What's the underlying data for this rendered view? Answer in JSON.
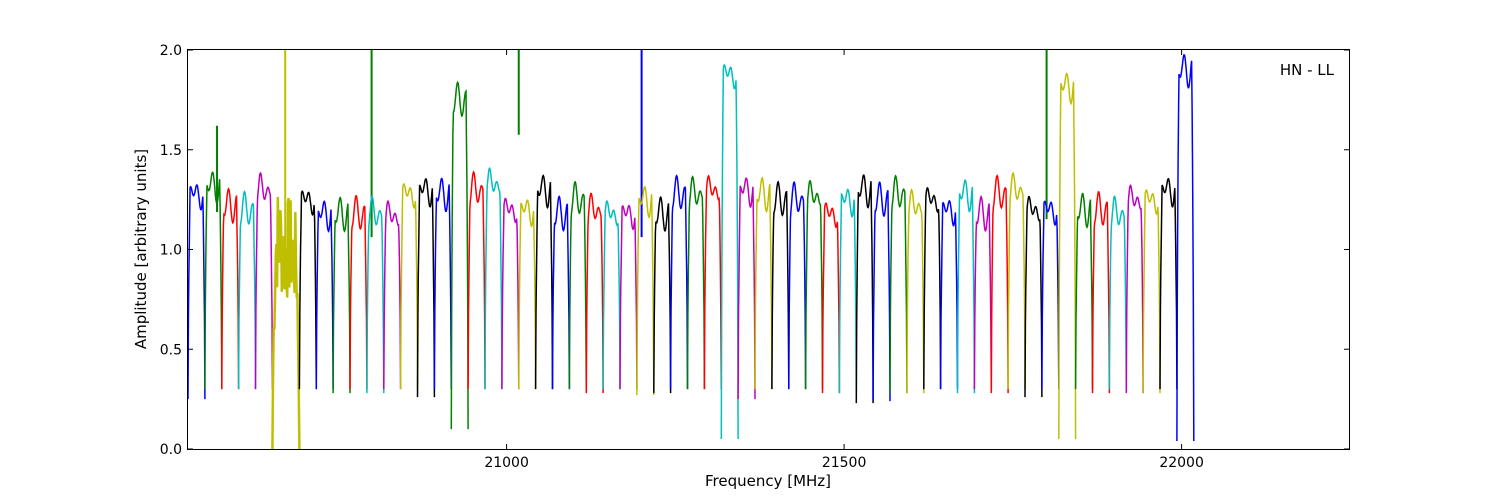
{
  "chart_data": {
    "type": "line",
    "annotation": "HN - LL",
    "xlabel": "Frequency [MHz]",
    "ylabel": "Amplitude [arbitrary units]",
    "xlim": [
      20528,
      22248
    ],
    "ylim": [
      0.0,
      2.0
    ],
    "x_ticks": [
      21000,
      21500,
      22000
    ],
    "x_tick_labels": [
      "21000",
      "21500",
      "22000"
    ],
    "y_ticks": [
      0.0,
      0.5,
      1.0,
      1.5,
      2.0
    ],
    "y_tick_labels": [
      "0.0",
      "0.5",
      "1.0",
      "1.5",
      "2.0"
    ],
    "grid": false,
    "legend": "none",
    "colors": [
      "#0000ff",
      "#008000",
      "#ff0000",
      "#00bfbf",
      "#bf00bf",
      "#bfbf00",
      "#000000"
    ],
    "background_color": "#c0c0c0",
    "channel_width_mhz": 25,
    "series": [
      {
        "color": "#0000ff",
        "x": [
          20528,
          20553
        ],
        "peak": 1.28,
        "floor": 0.25
      },
      {
        "color": "#008000",
        "x": [
          20553,
          20578
        ],
        "peak": 1.32,
        "floor": 0.3,
        "spike": {
          "x": 20571,
          "y": 1.62
        }
      },
      {
        "color": "#ff0000",
        "x": [
          20578,
          20603
        ],
        "peak": 1.22,
        "floor": 0.3
      },
      {
        "color": "#00bfbf",
        "x": [
          20603,
          20628
        ],
        "peak": 1.2,
        "floor": 0.3
      },
      {
        "color": "#bf00bf",
        "x": [
          20628,
          20653
        ],
        "peak": 1.3,
        "floor": 0.3
      },
      {
        "color": "#bfbf00",
        "x": [
          20653,
          20693
        ],
        "peak": 1.05,
        "floor": 0.0,
        "noisy": true,
        "spike": {
          "x": 20672,
          "y": 2.0
        }
      },
      {
        "color": "#000000",
        "x": [
          20693,
          20718
        ],
        "peak": 1.25,
        "floor": 0.3
      },
      {
        "color": "#0000ff",
        "x": [
          20718,
          20743
        ],
        "peak": 1.18,
        "floor": 0.3
      },
      {
        "color": "#008000",
        "x": [
          20743,
          20768
        ],
        "peak": 1.18,
        "floor": 0.28,
        "spike": {
          "x": 20800,
          "y": 2.0
        }
      },
      {
        "color": "#ff0000",
        "x": [
          20768,
          20793
        ],
        "peak": 1.18,
        "floor": 0.3
      },
      {
        "color": "#00bfbf",
        "x": [
          20793,
          20818
        ],
        "peak": 1.18,
        "floor": 0.28
      },
      {
        "color": "#bf00bf",
        "x": [
          20818,
          20843
        ],
        "peak": 1.17,
        "floor": 0.3
      },
      {
        "color": "#bfbf00",
        "x": [
          20843,
          20868
        ],
        "peak": 1.28,
        "floor": 0.3
      },
      {
        "color": "#000000",
        "x": [
          20868,
          20893
        ],
        "peak": 1.3,
        "floor": 0.26
      },
      {
        "color": "#0000ff",
        "x": [
          20893,
          20918
        ],
        "peak": 1.28,
        "floor": 0.3
      },
      {
        "color": "#008000",
        "x": [
          20918,
          20943
        ],
        "peak": 1.75,
        "floor": 0.1,
        "spike": {
          "x": 21018,
          "y": 2.0
        }
      },
      {
        "color": "#ff0000",
        "x": [
          20943,
          20968
        ],
        "peak": 1.3,
        "floor": 0.3
      },
      {
        "color": "#00bfbf",
        "x": [
          20968,
          20993
        ],
        "peak": 1.33,
        "floor": 0.3
      },
      {
        "color": "#bf00bf",
        "x": [
          20993,
          21018
        ],
        "peak": 1.2,
        "floor": 0.3
      },
      {
        "color": "#bfbf00",
        "x": [
          21018,
          21043
        ],
        "peak": 1.2,
        "floor": 0.3
      },
      {
        "color": "#000000",
        "x": [
          21043,
          21068
        ],
        "peak": 1.3,
        "floor": 0.3
      },
      {
        "color": "#0000ff",
        "x": [
          21068,
          21093
        ],
        "peak": 1.18,
        "floor": 0.3,
        "spike": {
          "x": 21200,
          "y": 2.0
        }
      },
      {
        "color": "#008000",
        "x": [
          21093,
          21118
        ],
        "peak": 1.25,
        "floor": 0.3
      },
      {
        "color": "#ff0000",
        "x": [
          21118,
          21143
        ],
        "peak": 1.2,
        "floor": 0.28
      },
      {
        "color": "#00bfbf",
        "x": [
          21143,
          21168
        ],
        "peak": 1.18,
        "floor": 0.3
      },
      {
        "color": "#bf00bf",
        "x": [
          21168,
          21193
        ],
        "peak": 1.18,
        "floor": 0.3
      },
      {
        "color": "#bfbf00",
        "x": [
          21193,
          21218
        ],
        "peak": 1.25,
        "floor": 0.27
      },
      {
        "color": "#000000",
        "x": [
          21218,
          21243
        ],
        "peak": 1.18,
        "floor": 0.28
      },
      {
        "color": "#0000ff",
        "x": [
          21243,
          21268
        ],
        "peak": 1.28,
        "floor": 0.3
      },
      {
        "color": "#008000",
        "x": [
          21268,
          21293
        ],
        "peak": 1.28,
        "floor": 0.3
      },
      {
        "color": "#ff0000",
        "x": [
          21293,
          21318
        ],
        "peak": 1.3,
        "floor": 0.3
      },
      {
        "color": "#00bfbf",
        "x": [
          21318,
          21343
        ],
        "peak": 1.88,
        "floor": 0.05
      },
      {
        "color": "#bf00bf",
        "x": [
          21343,
          21368
        ],
        "peak": 1.3,
        "floor": 0.25
      },
      {
        "color": "#bfbf00",
        "x": [
          21368,
          21393
        ],
        "peak": 1.28,
        "floor": 0.3
      },
      {
        "color": "#000000",
        "x": [
          21393,
          21418
        ],
        "peak": 1.25,
        "floor": 0.3
      },
      {
        "color": "#0000ff",
        "x": [
          21418,
          21443
        ],
        "peak": 1.25,
        "floor": 0.3
      },
      {
        "color": "#008000",
        "x": [
          21443,
          21468
        ],
        "peak": 1.27,
        "floor": 0.3
      },
      {
        "color": "#ff0000",
        "x": [
          21468,
          21493
        ],
        "peak": 1.18,
        "floor": 0.28
      },
      {
        "color": "#00bfbf",
        "x": [
          21493,
          21518
        ],
        "peak": 1.25,
        "floor": 0.28
      },
      {
        "color": "#000000",
        "x": [
          21518,
          21543
        ],
        "peak": 1.3,
        "floor": 0.23
      },
      {
        "color": "#0000ff",
        "x": [
          21543,
          21568
        ],
        "peak": 1.25,
        "floor": 0.24
      },
      {
        "color": "#008000",
        "x": [
          21568,
          21593
        ],
        "peak": 1.28,
        "floor": 0.28,
        "spike": {
          "x": 21800,
          "y": 2.0
        }
      },
      {
        "color": "#bfbf00",
        "x": [
          21593,
          21618
        ],
        "peak": 1.22,
        "floor": 0.28
      },
      {
        "color": "#000000",
        "x": [
          21618,
          21643
        ],
        "peak": 1.25,
        "floor": 0.3
      },
      {
        "color": "#0000ff",
        "x": [
          21643,
          21668
        ],
        "peak": 1.2,
        "floor": 0.3
      },
      {
        "color": "#00bfbf",
        "x": [
          21668,
          21693
        ],
        "peak": 1.28,
        "floor": 0.28
      },
      {
        "color": "#bf00bf",
        "x": [
          21693,
          21718
        ],
        "peak": 1.18,
        "floor": 0.3
      },
      {
        "color": "#ff0000",
        "x": [
          21718,
          21743
        ],
        "peak": 1.28,
        "floor": 0.28
      },
      {
        "color": "#bfbf00",
        "x": [
          21743,
          21768
        ],
        "peak": 1.3,
        "floor": 0.3
      },
      {
        "color": "#000000",
        "x": [
          21768,
          21793
        ],
        "peak": 1.2,
        "floor": 0.26
      },
      {
        "color": "#0000ff",
        "x": [
          21793,
          21818
        ],
        "peak": 1.2,
        "floor": 0.3
      },
      {
        "color": "#bfbf00",
        "x": [
          21818,
          21843
        ],
        "peak": 1.82,
        "floor": 0.05
      },
      {
        "color": "#008000",
        "x": [
          21843,
          21868
        ],
        "peak": 1.2,
        "floor": 0.3
      },
      {
        "color": "#ff0000",
        "x": [
          21868,
          21893
        ],
        "peak": 1.2,
        "floor": 0.28
      },
      {
        "color": "#00bfbf",
        "x": [
          21893,
          21918
        ],
        "peak": 1.18,
        "floor": 0.3
      },
      {
        "color": "#bf00bf",
        "x": [
          21918,
          21943
        ],
        "peak": 1.25,
        "floor": 0.28
      },
      {
        "color": "#bfbf00",
        "x": [
          21943,
          21968
        ],
        "peak": 1.25,
        "floor": 0.28
      },
      {
        "color": "#000000",
        "x": [
          21968,
          21993
        ],
        "peak": 1.3,
        "floor": 0.3
      },
      {
        "color": "#0000ff",
        "x": [
          21993,
          22018
        ],
        "peak": 1.9,
        "floor": 0.04
      }
    ]
  }
}
